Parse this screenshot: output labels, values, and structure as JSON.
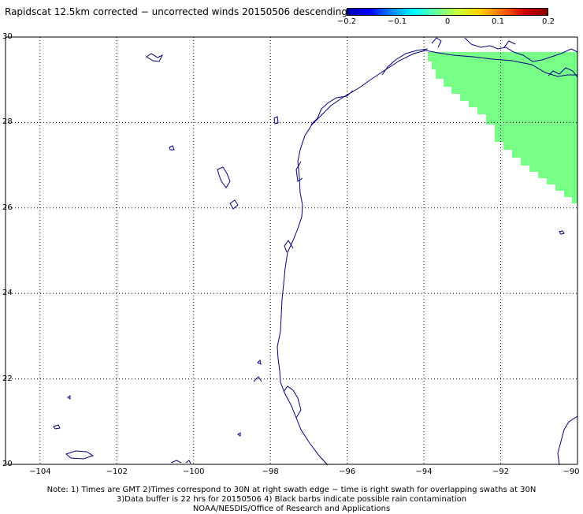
{
  "title": "Rapidscat 12.5km corrected − uncorrected winds 20150506 descending",
  "colorbar": {
    "colors": [
      "#0000aa",
      "#0000ff",
      "#0088ff",
      "#00ffff",
      "#66ff99",
      "#ccff33",
      "#ffcc00",
      "#ff6600",
      "#cc0000",
      "#880000"
    ],
    "ticks": [
      {
        "value": -0.2,
        "label": "−0.2"
      },
      {
        "value": -0.1,
        "label": "−0.1"
      },
      {
        "value": 0,
        "label": "0"
      },
      {
        "value": 0.1,
        "label": "0.1"
      },
      {
        "value": 0.2,
        "label": "0.2"
      }
    ]
  },
  "map": {
    "lat_ticks": [
      {
        "value": 30,
        "label": "30"
      },
      {
        "value": 28,
        "label": "28"
      },
      {
        "value": 26,
        "label": "26"
      },
      {
        "value": 24,
        "label": "24"
      },
      {
        "value": 22,
        "label": "22"
      },
      {
        "value": 20,
        "label": "20"
      }
    ],
    "lon_ticks": [
      {
        "value": -104,
        "label": "−104"
      },
      {
        "value": -102,
        "label": "−102"
      },
      {
        "value": -100,
        "label": "−100"
      },
      {
        "value": -98,
        "label": "−98"
      },
      {
        "value": -96,
        "label": "−96"
      },
      {
        "value": -94,
        "label": "−94"
      },
      {
        "value": -92,
        "label": "−92"
      },
      {
        "value": -90,
        "label": "−90"
      }
    ],
    "swath_color": "#77ff88",
    "coast_color": "#000080",
    "grid_color": "#000000"
  },
  "notes": {
    "line1": "Note: 1) Times are GMT 2)Times correspond to 30N at right swath edge − time is right swath for overlapping swaths at 30N",
    "line2": "3)Data buffer is 22 hrs for 20150506 4) Black barbs indicate possible rain contamination",
    "line3": "NOAA/NESDIS/Office of Research and Applications"
  }
}
